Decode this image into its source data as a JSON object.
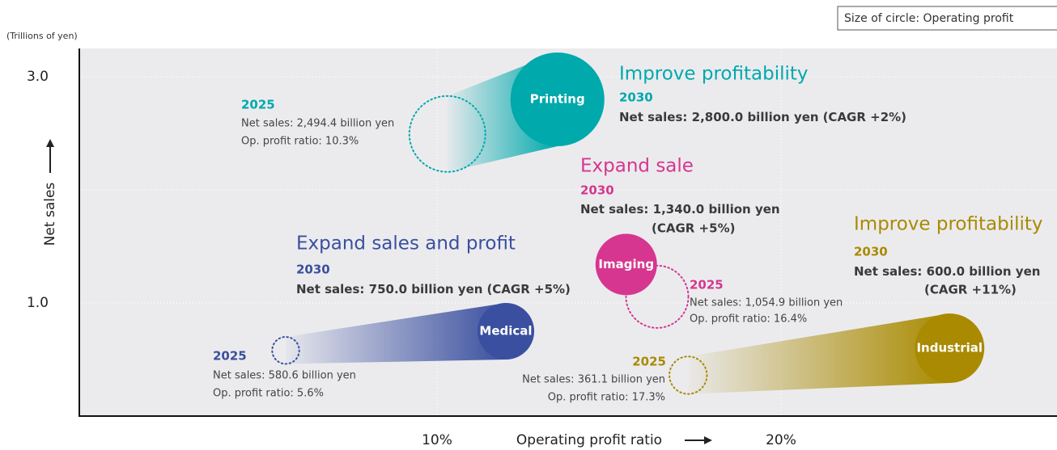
{
  "chart_data": {
    "type": "bubble",
    "size_note": "Size of circle: Operating profit",
    "y_unit": "(Trillions of yen)",
    "xlabel": "Operating profit ratio",
    "ylabel": "Net sales",
    "xlim": [
      -0.4,
      28
    ],
    "ylim": [
      0,
      3.25
    ],
    "xticks": [
      {
        "value": 10,
        "label": "10%"
      },
      {
        "value": 20,
        "label": "20%"
      }
    ],
    "yticks": [
      {
        "value": 1,
        "label": "1.0"
      },
      {
        "value": 2,
        "label": null
      },
      {
        "value": 3,
        "label": "3.0"
      }
    ],
    "grid": true,
    "series": [
      {
        "name": "Printing",
        "color": "#00a9ac",
        "heading": "Improve profitability",
        "years": [
          "2025",
          "2030"
        ],
        "x": [
          10.3,
          13.5
        ],
        "values": [
          2.4944,
          2.8
        ],
        "sizes": [
          257,
          392
        ],
        "value_labels": [
          "Net sales: 2,494.4 billion yen",
          "Net sales: 2,800.0 billion yen"
        ],
        "cagr_label": "(CAGR +2%)",
        "x_label": "Op. profit ratio: 10.3%"
      },
      {
        "name": "Imaging",
        "color": "#d6368f",
        "heading": "Expand sale",
        "years": [
          "2025",
          "2030"
        ],
        "x": [
          16.4,
          15.5
        ],
        "values": [
          1.0549,
          1.34
        ],
        "sizes": [
          173,
          168
        ],
        "value_labels": [
          "Net sales: 1,054.9 billion yen",
          "Net sales: 1,340.0 billion yen"
        ],
        "cagr_label": "(CAGR +5%)",
        "x_label": "Op. profit ratio: 16.4%"
      },
      {
        "name": "Medical",
        "color": "#3a4f9f",
        "heading": "Expand sales and profit",
        "years": [
          "2025",
          "2030"
        ],
        "x": [
          5.6,
          12.0
        ],
        "values": [
          0.5806,
          0.75
        ],
        "sizes": [
          32.5,
          143
        ],
        "value_labels": [
          "Net sales: 580.6 billion yen",
          "Net sales: 750.0 billion yen"
        ],
        "cagr_label": "(CAGR +5%)",
        "x_label": "Op. profit ratio: 5.6%"
      },
      {
        "name": "Industrial",
        "color": "#a98a00",
        "heading": "Improve profitability",
        "years": [
          "2025",
          "2030"
        ],
        "x": [
          17.3,
          24.9
        ],
        "values": [
          0.3611,
          0.6
        ],
        "sizes": [
          62.5,
          215
        ],
        "value_labels": [
          "Net sales: 361.1 billion yen",
          "Net sales: 600.0 billion yen"
        ],
        "cagr_label": "(CAGR +11%)",
        "x_label": "Op. profit ratio: 17.3%"
      }
    ]
  }
}
